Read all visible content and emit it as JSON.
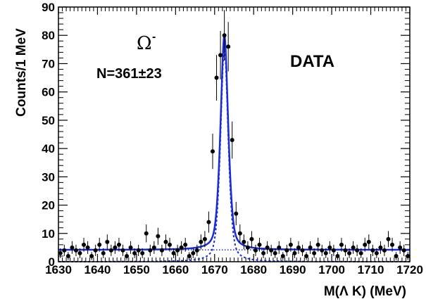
{
  "chart_data": {
    "type": "scatter",
    "title": "",
    "xlabel": "M(Λ K) (MeV)",
    "ylabel": "Counts/1 MeV",
    "xlim": [
      1630,
      1720
    ],
    "ylim": [
      0,
      90
    ],
    "x_ticks": [
      1630,
      1640,
      1650,
      1660,
      1670,
      1680,
      1690,
      1700,
      1710,
      1720
    ],
    "y_ticks": [
      0,
      10,
      20,
      30,
      40,
      50,
      60,
      70,
      80,
      90
    ],
    "x_tick_labels": [
      "1630",
      "1640",
      "1650",
      "1660",
      "1670",
      "1680",
      "1690",
      "1700",
      "1710",
      "1720"
    ],
    "y_tick_labels": [
      "0",
      "10",
      "20",
      "30",
      "40",
      "50",
      "60",
      "70",
      "80",
      "90"
    ],
    "grid": false,
    "legend": "none",
    "annotations": {
      "particle": "Ω",
      "particle_charge": "-",
      "yield": "N=361±23",
      "dataset": "DATA"
    },
    "fit_parameters": {
      "peak_position": 1672.5,
      "peak_height": 80,
      "background_level": 4.2
    },
    "series": [
      {
        "kind": "data-points-with-errors",
        "color": "#000000",
        "x": [
          1630.5,
          1631.5,
          1632.5,
          1633.5,
          1634.5,
          1635.5,
          1636.5,
          1637.5,
          1638.5,
          1639.5,
          1640.5,
          1641.5,
          1642.5,
          1643.5,
          1644.5,
          1645.5,
          1646.5,
          1647.5,
          1648.5,
          1649.5,
          1650.5,
          1651.5,
          1652.5,
          1653.5,
          1654.5,
          1655.5,
          1656.5,
          1657.5,
          1658.5,
          1659.5,
          1660.5,
          1661.5,
          1662.5,
          1663.5,
          1664.5,
          1665.5,
          1666.5,
          1667.5,
          1668.5,
          1669.5,
          1670.5,
          1671.5,
          1672.5,
          1673.5,
          1674.5,
          1675.5,
          1676.5,
          1677.5,
          1678.5,
          1679.5,
          1680.5,
          1681.5,
          1682.5,
          1683.5,
          1684.5,
          1685.5,
          1686.5,
          1687.5,
          1688.5,
          1689.5,
          1690.5,
          1691.5,
          1692.5,
          1693.5,
          1694.5,
          1695.5,
          1696.5,
          1697.5,
          1698.5,
          1699.5,
          1700.5,
          1701.5,
          1702.5,
          1703.5,
          1704.5,
          1705.5,
          1706.5,
          1707.5,
          1708.5,
          1709.5,
          1710.5,
          1711.5,
          1712.5,
          1713.5,
          1714.5,
          1715.5,
          1716.5,
          1717.5,
          1718.5,
          1719.5
        ],
        "y": [
          3,
          4,
          2,
          5,
          4,
          3,
          6,
          5,
          2,
          4,
          6,
          3,
          7,
          4,
          5,
          6,
          4,
          2,
          5,
          3,
          4,
          3,
          10,
          4,
          5,
          9,
          4,
          7,
          6,
          3,
          4,
          5,
          6,
          2,
          3,
          4,
          7,
          8,
          14,
          39,
          65,
          73,
          80,
          76,
          43,
          17,
          10,
          7,
          5,
          8,
          4,
          6,
          3,
          5,
          4,
          3,
          5,
          2,
          4,
          6,
          3,
          5,
          4,
          2,
          5,
          3,
          6,
          4,
          3,
          5,
          4,
          2,
          6,
          4,
          3,
          5,
          4,
          3,
          6,
          7,
          4,
          3,
          5,
          4,
          8,
          6,
          2,
          5,
          4,
          2
        ]
      },
      {
        "kind": "total-fit",
        "color": "#1a2bd8"
      },
      {
        "kind": "signal-component",
        "color": "#1a2bd8"
      },
      {
        "kind": "background-component",
        "color": "#1a2bd8"
      }
    ]
  }
}
